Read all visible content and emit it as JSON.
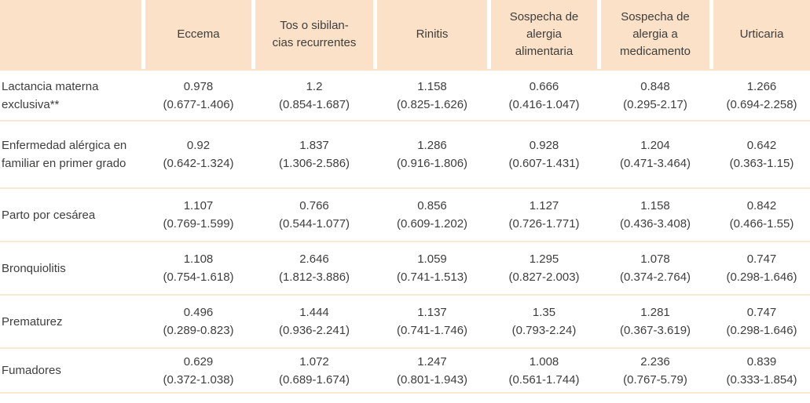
{
  "colors": {
    "header_bg": "#FAE1C7",
    "row_divider": "#F8E7D3",
    "text": "#3E3E3D",
    "background": "#FFFFFF"
  },
  "table": {
    "corner": "",
    "columns": [
      "Eccema",
      "Tos o sibilan-\ncias recurrentes",
      "Rinitis",
      "Sospecha de\nalergia\nalimentaria",
      "Sospecha de\nalergia a\nmedicamento",
      "Urticaria"
    ],
    "rows": [
      {
        "label": "Lactancia materna exclusiva**",
        "cells": [
          {
            "value": "0.978",
            "ci": "(0.677-1.406)"
          },
          {
            "value": "1.2",
            "ci": "(0.854-1.687)"
          },
          {
            "value": "1.158",
            "ci": "(0.825-1.626)"
          },
          {
            "value": "0.666",
            "ci": "(0.416-1.047)"
          },
          {
            "value": "0.848",
            "ci": "(0.295-2.17)"
          },
          {
            "value": "1.266",
            "ci": "(0.694-2.258)"
          }
        ]
      },
      {
        "label": "Enfermedad alérgica en familiar en primer grado",
        "cells": [
          {
            "value": "0.92",
            "ci": "(0.642-1.324)"
          },
          {
            "value": "1.837",
            "ci": "(1.306-2.586)"
          },
          {
            "value": "1.286",
            "ci": "(0.916-1.806)"
          },
          {
            "value": "0.928",
            "ci": "(0.607-1.431)"
          },
          {
            "value": "1.204",
            "ci": "(0.471-3.464)"
          },
          {
            "value": "0.642",
            "ci": "(0.363-1.15)"
          }
        ]
      },
      {
        "label": "Parto por cesárea",
        "cells": [
          {
            "value": "1.107",
            "ci": "(0.769-1.599)"
          },
          {
            "value": "0.766",
            "ci": "(0.544-1.077)"
          },
          {
            "value": "0.856",
            "ci": "(0.609-1.202)"
          },
          {
            "value": "1.127",
            "ci": "(0.726-1.771)"
          },
          {
            "value": "1.158",
            "ci": "(0.436-3.408)"
          },
          {
            "value": "0.842",
            "ci": "(0.466-1.55)"
          }
        ]
      },
      {
        "label": "Bronquiolitis",
        "cells": [
          {
            "value": "1.108",
            "ci": "(0.754-1.618)"
          },
          {
            "value": "2.646",
            "ci": "(1.812-3.886)"
          },
          {
            "value": "1.059",
            "ci": "(0.741-1.513)"
          },
          {
            "value": "1.295",
            "ci": "(0.827-2.003)"
          },
          {
            "value": "1.078",
            "ci": "(0.374-2.764)"
          },
          {
            "value": "0.747",
            "ci": "(0.298-1.646)"
          }
        ]
      },
      {
        "label": "Prematurez",
        "cells": [
          {
            "value": "0.496",
            "ci": "(0.289-0.823)"
          },
          {
            "value": "1.444",
            "ci": "(0.936-2.241)"
          },
          {
            "value": "1.137",
            "ci": "(0.741-1.746)"
          },
          {
            "value": "1.35",
            "ci": "(0.793-2.24)"
          },
          {
            "value": "1.281",
            "ci": "(0.367-3.619)"
          },
          {
            "value": "0.747",
            "ci": "(0.298-1.646)"
          }
        ]
      },
      {
        "label": "Fumadores",
        "cells": [
          {
            "value": "0.629",
            "ci": "(0.372-1.038)"
          },
          {
            "value": "1.072",
            "ci": "(0.689-1.674)"
          },
          {
            "value": "1.247",
            "ci": "(0.801-1.943)"
          },
          {
            "value": "1.008",
            "ci": "(0.561-1.744)"
          },
          {
            "value": "2.236",
            "ci": "(0.767-5.79)"
          },
          {
            "value": "0.839",
            "ci": "(0.333-1.854)"
          }
        ]
      }
    ]
  }
}
